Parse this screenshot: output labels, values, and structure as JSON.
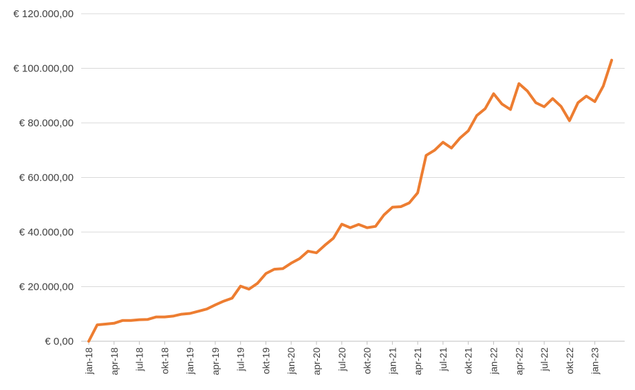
{
  "chart_data": {
    "type": "line",
    "title": "",
    "xlabel": "",
    "ylabel": "",
    "ylim": [
      0,
      120000
    ],
    "yticks": [
      0,
      20000,
      40000,
      60000,
      80000,
      100000,
      120000
    ],
    "ytick_labels": [
      "€ 0,00",
      "€ 20.000,00",
      "€ 40.000,00",
      "€ 60.000,00",
      "€ 80.000,00",
      "€ 100.000,00",
      "€ 120.000,00"
    ],
    "grid": true,
    "legend": "none",
    "x": [
      "jan-18",
      "feb-18",
      "mrt-18",
      "apr-18",
      "mei-18",
      "jun-18",
      "jul-18",
      "aug-18",
      "sep-18",
      "okt-18",
      "nov-18",
      "dec-18",
      "jan-19",
      "feb-19",
      "mrt-19",
      "apr-19",
      "mei-19",
      "jun-19",
      "jul-19",
      "aug-19",
      "sep-19",
      "okt-19",
      "nov-19",
      "dec-19",
      "jan-20",
      "feb-20",
      "mrt-20",
      "apr-20",
      "mei-20",
      "jun-20",
      "jul-20",
      "aug-20",
      "sep-20",
      "okt-20",
      "nov-20",
      "dec-20",
      "jan-21",
      "feb-21",
      "mrt-21",
      "apr-21",
      "mei-21",
      "jun-21",
      "jul-21",
      "aug-21",
      "sep-21",
      "okt-21",
      "nov-21",
      "dec-21",
      "jan-22",
      "feb-22",
      "mrt-22",
      "apr-22",
      "mei-22",
      "jun-22",
      "jul-22",
      "aug-22",
      "sep-22",
      "okt-22",
      "nov-22",
      "dec-22",
      "jan-23",
      "feb-23",
      "mrt-23"
    ],
    "x_tick_labels": [
      "jan-18",
      "apr-18",
      "jul-18",
      "okt-18",
      "jan-19",
      "apr-19",
      "jul-19",
      "okt-19",
      "jan-20",
      "apr-20",
      "jul-20",
      "okt-20",
      "jan-21",
      "apr-21",
      "jul-21",
      "okt-21",
      "jan-22",
      "apr-22",
      "jul-22",
      "okt-22",
      "jan-23"
    ],
    "series": [
      {
        "color": "#ED7D31",
        "values": [
          0,
          6000,
          6300,
          6600,
          7600,
          7600,
          7900,
          8000,
          8900,
          8900,
          9200,
          9900,
          10200,
          11000,
          11800,
          13300,
          14700,
          15800,
          20200,
          19100,
          21200,
          24800,
          26400,
          26600,
          28600,
          30300,
          33000,
          32400,
          35200,
          37700,
          42900,
          41600,
          42800,
          41600,
          42100,
          46300,
          49100,
          49300,
          50700,
          54400,
          68100,
          70000,
          72900,
          70800,
          74400,
          77100,
          82700,
          85200,
          90700,
          86900,
          84900,
          94400,
          91700,
          87400,
          85900,
          88900,
          86000,
          80800,
          87400,
          89800,
          87800,
          93500,
          103000
        ]
      }
    ]
  }
}
